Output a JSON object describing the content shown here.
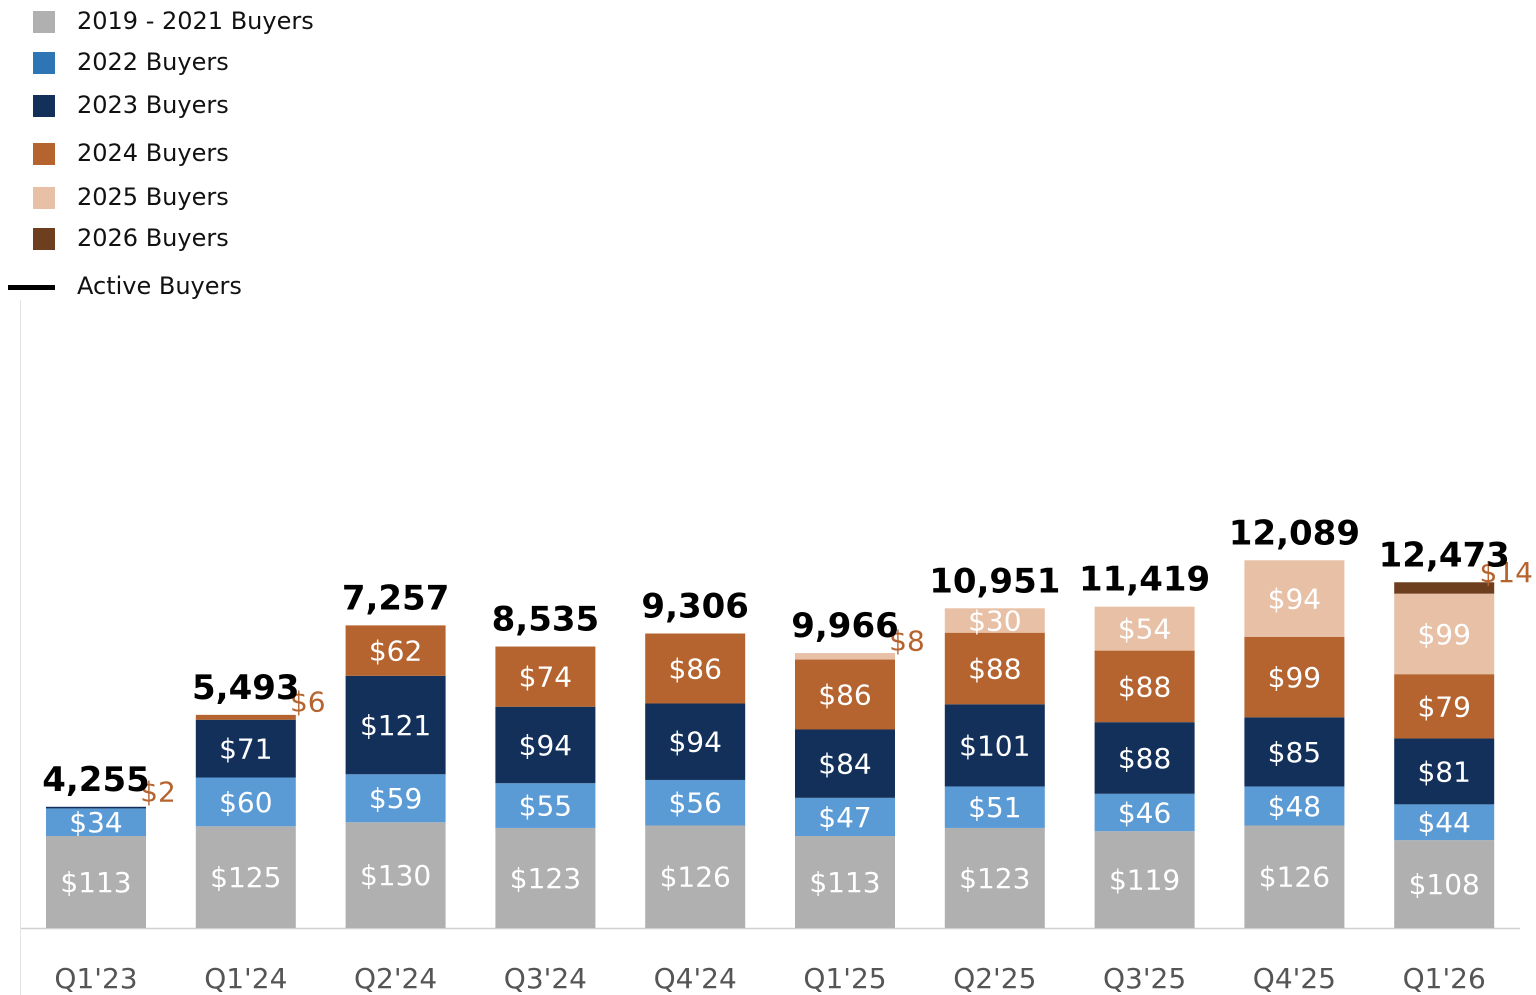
{
  "chart_data": {
    "type": "bar",
    "stacked": true,
    "categories": [
      "Q1'23",
      "Q1'24",
      "Q2'24",
      "Q3'24",
      "Q4'24",
      "Q1'25",
      "Q2'25",
      "Q3'25",
      "Q4'25",
      "Q1'26"
    ],
    "series": [
      {
        "name": "2019 - 2021 Buyers",
        "color": "#b0b0b0",
        "values": [
          113,
          125,
          130,
          123,
          126,
          113,
          123,
          119,
          126,
          108
        ]
      },
      {
        "name": "2022 Buyers",
        "color": "#5b9bd5",
        "legend_color": "#2e75b6",
        "values": [
          34,
          60,
          59,
          55,
          56,
          47,
          51,
          46,
          48,
          44
        ]
      },
      {
        "name": "2023 Buyers",
        "color": "#12305a",
        "values": [
          2,
          71,
          121,
          94,
          94,
          84,
          101,
          88,
          85,
          81
        ]
      },
      {
        "name": "2024 Buyers",
        "color": "#b5642f",
        "values": [
          null,
          6,
          62,
          74,
          86,
          86,
          88,
          88,
          99,
          79
        ]
      },
      {
        "name": "2025 Buyers",
        "color": "#e8c0a6",
        "values": [
          null,
          null,
          null,
          null,
          null,
          8,
          30,
          54,
          94,
          99
        ]
      },
      {
        "name": "2026 Buyers",
        "color": "#6e3f1f",
        "values": [
          null,
          null,
          null,
          null,
          null,
          null,
          null,
          null,
          null,
          14
        ]
      }
    ],
    "segment_labels": [
      [
        "$113",
        "$34",
        "$2",
        null,
        null,
        null
      ],
      [
        "$125",
        "$60",
        "$71",
        "$6",
        null,
        null
      ],
      [
        "$130",
        "$59",
        "$121",
        "$62",
        null,
        null
      ],
      [
        "$123",
        "$55",
        "$94",
        "$74",
        null,
        null
      ],
      [
        "$126",
        "$56",
        "$94",
        "$86",
        null,
        null
      ],
      [
        "$113",
        "$47",
        "$84",
        "$86",
        "$8",
        null
      ],
      [
        "$123",
        "$51",
        "$101",
        "$88",
        "$30",
        null
      ],
      [
        "$119",
        "$46",
        "$88",
        "$88",
        "$54",
        null
      ],
      [
        "$126",
        "$48",
        "$85",
        "$99",
        "$94",
        null
      ],
      [
        "$108",
        "$44",
        "$81",
        "$79",
        "$99",
        "$14"
      ]
    ],
    "active_buyers": {
      "name": "Active Buyers",
      "values": [
        4255,
        5493,
        7257,
        8535,
        9306,
        9966,
        10951,
        11419,
        12089,
        12473
      ],
      "labels": [
        "4,255",
        "5,493",
        "7,257",
        "8,535",
        "9,306",
        "9,966",
        "10,951",
        "11,419",
        "12,089",
        "12,473"
      ]
    },
    "ylim": [
      0,
      1000
    ],
    "grid": false,
    "legend_position": "top-left",
    "title": "",
    "xlabel": "",
    "ylabel": ""
  }
}
